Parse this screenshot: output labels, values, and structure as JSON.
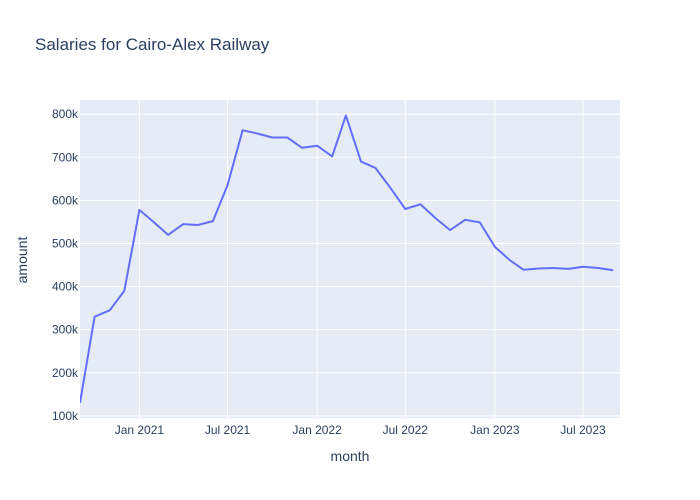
{
  "chart_data": {
    "type": "line",
    "title": "Salaries for Cairo-Alex Railway",
    "xlabel": "month",
    "ylabel": "amount",
    "x_ticks": [
      {
        "date": "2021-01-01",
        "label": "Jan 2021"
      },
      {
        "date": "2021-07-01",
        "label": "Jul 2021"
      },
      {
        "date": "2022-01-01",
        "label": "Jan 2022"
      },
      {
        "date": "2022-07-01",
        "label": "Jul 2022"
      },
      {
        "date": "2023-01-01",
        "label": "Jan 2023"
      },
      {
        "date": "2023-07-01",
        "label": "Jul 2023"
      }
    ],
    "y_ticks": [
      {
        "value": 100000,
        "label": "100k"
      },
      {
        "value": 200000,
        "label": "200k"
      },
      {
        "value": 300000,
        "label": "300k"
      },
      {
        "value": 400000,
        "label": "400k"
      },
      {
        "value": 500000,
        "label": "500k"
      },
      {
        "value": 600000,
        "label": "600k"
      },
      {
        "value": 700000,
        "label": "700k"
      },
      {
        "value": 800000,
        "label": "800k"
      }
    ],
    "xlim": [
      "2020-09-01",
      "2023-09-15"
    ],
    "ylim": [
      95000,
      833000
    ],
    "grid": true,
    "colors": {
      "line": "#636efa",
      "plot_background": "#e5ecf6",
      "grid": "#ffffff",
      "text": "#2a3f5f"
    },
    "series": [
      {
        "x": [
          "2020-09-01",
          "2020-10-01",
          "2020-11-01",
          "2020-12-01",
          "2021-01-01",
          "2021-02-01",
          "2021-03-01",
          "2021-04-01",
          "2021-05-01",
          "2021-06-01",
          "2021-07-01",
          "2021-08-01",
          "2021-09-01",
          "2021-10-01",
          "2021-11-01",
          "2021-12-01",
          "2022-01-01",
          "2022-02-01",
          "2022-03-01",
          "2022-04-01",
          "2022-05-01",
          "2022-06-01",
          "2022-07-01",
          "2022-08-01",
          "2022-09-01",
          "2022-10-01",
          "2022-11-01",
          "2022-12-01",
          "2023-01-01",
          "2023-02-01",
          "2023-03-01",
          "2023-04-01",
          "2023-05-01",
          "2023-06-01",
          "2023-07-01",
          "2023-08-01",
          "2023-09-01"
        ],
        "values": [
          130000,
          330000,
          345000,
          390000,
          578000,
          548000,
          520000,
          545000,
          543000,
          552000,
          635000,
          763000,
          755000,
          746000,
          746000,
          722000,
          727000,
          702000,
          797000,
          690000,
          675000,
          628000,
          580000,
          591000,
          559000,
          531000,
          555000,
          549000,
          492000,
          461000,
          439000,
          442000,
          443000,
          441000,
          446000,
          443000,
          438000
        ]
      }
    ]
  }
}
